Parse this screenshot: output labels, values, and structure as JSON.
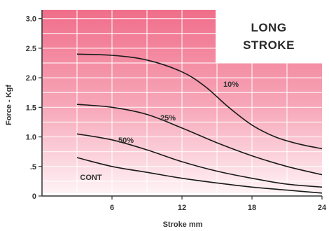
{
  "chart_data": {
    "type": "line",
    "title": [
      "LONG",
      "STROKE"
    ],
    "xlabel": "Stroke mm",
    "ylabel": "Force - Kgf",
    "xlim": [
      0,
      24
    ],
    "ylim": [
      0,
      3.0
    ],
    "x_ticks": [
      {
        "value": 6,
        "label": "6"
      },
      {
        "value": 12,
        "label": "12"
      },
      {
        "value": 18,
        "label": "18"
      },
      {
        "value": 24,
        "label": "24"
      }
    ],
    "y_ticks": [
      {
        "value": 0,
        "label": "0"
      },
      {
        "value": 0.5,
        "label": ".5"
      },
      {
        "value": 1.0,
        "label": "1.0"
      },
      {
        "value": 1.5,
        "label": "1.5"
      },
      {
        "value": 2.0,
        "label": "2.0"
      },
      {
        "value": 2.5,
        "label": "2.5"
      },
      {
        "value": 3.0,
        "label": "3.0"
      }
    ],
    "series": [
      {
        "name": "10%",
        "x": [
          3,
          6,
          9,
          12,
          14,
          16,
          18,
          20,
          22,
          24
        ],
        "y": [
          2.4,
          2.38,
          2.3,
          2.1,
          1.85,
          1.5,
          1.2,
          1.0,
          0.88,
          0.8
        ],
        "label_at": [
          16.2,
          1.85
        ]
      },
      {
        "name": "25%",
        "x": [
          3,
          6,
          9,
          12,
          15,
          18,
          21,
          24
        ],
        "y": [
          1.55,
          1.5,
          1.38,
          1.15,
          0.9,
          0.68,
          0.5,
          0.36
        ],
        "label_at": [
          10.8,
          1.28
        ]
      },
      {
        "name": "50%",
        "x": [
          3,
          6,
          9,
          12,
          15,
          18,
          21,
          24
        ],
        "y": [
          1.05,
          0.95,
          0.78,
          0.58,
          0.42,
          0.3,
          0.2,
          0.15
        ],
        "label_at": [
          7.2,
          0.9
        ]
      },
      {
        "name": "CONT",
        "x": [
          3,
          6,
          9,
          12,
          15,
          18,
          21,
          24
        ],
        "y": [
          0.65,
          0.5,
          0.4,
          0.3,
          0.22,
          0.15,
          0.1,
          0.05
        ],
        "label_at": [
          4.2,
          0.27
        ]
      }
    ],
    "grid": true,
    "background_top_color": "#f06e8a",
    "background_bottom_color": "#fff3f6",
    "title_box_color": "#ffffff",
    "line_color": "#1a1a1a"
  }
}
